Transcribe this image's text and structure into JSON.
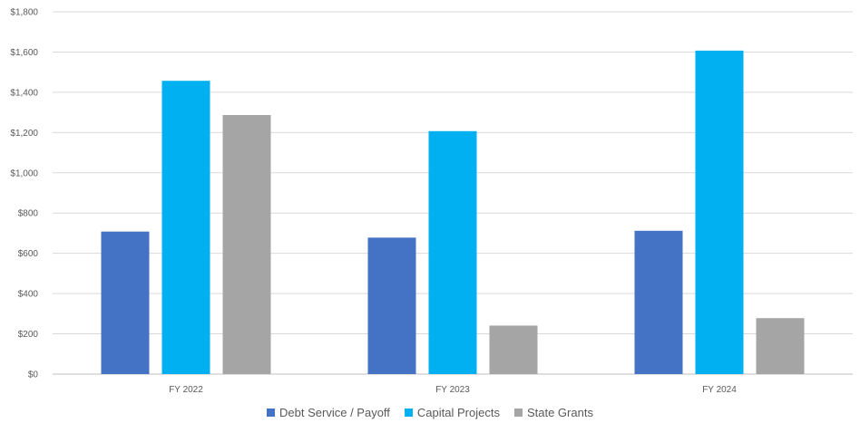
{
  "chart_data": {
    "type": "bar",
    "title": "",
    "xlabel": "",
    "ylabel": "",
    "categories": [
      "FY 2022",
      "FY 2023",
      "FY 2024"
    ],
    "series": [
      {
        "name": "Debt Service / Payoff",
        "color": "#4472C4",
        "values": [
          708,
          678,
          712
        ]
      },
      {
        "name": "Capital Projects",
        "color": "#00B0F0",
        "values": [
          1457,
          1207,
          1607
        ]
      },
      {
        "name": "State Grants",
        "color": "#A5A5A5",
        "values": [
          1287,
          241,
          278
        ]
      }
    ],
    "ylim": [
      0,
      1800
    ],
    "yticks": [
      "$0",
      "$200",
      "$400",
      "$600",
      "$800",
      "$1,000",
      "$1,200",
      "$1,400",
      "$1,600",
      "$1,800"
    ],
    "grid": true,
    "legend_position": "bottom"
  }
}
